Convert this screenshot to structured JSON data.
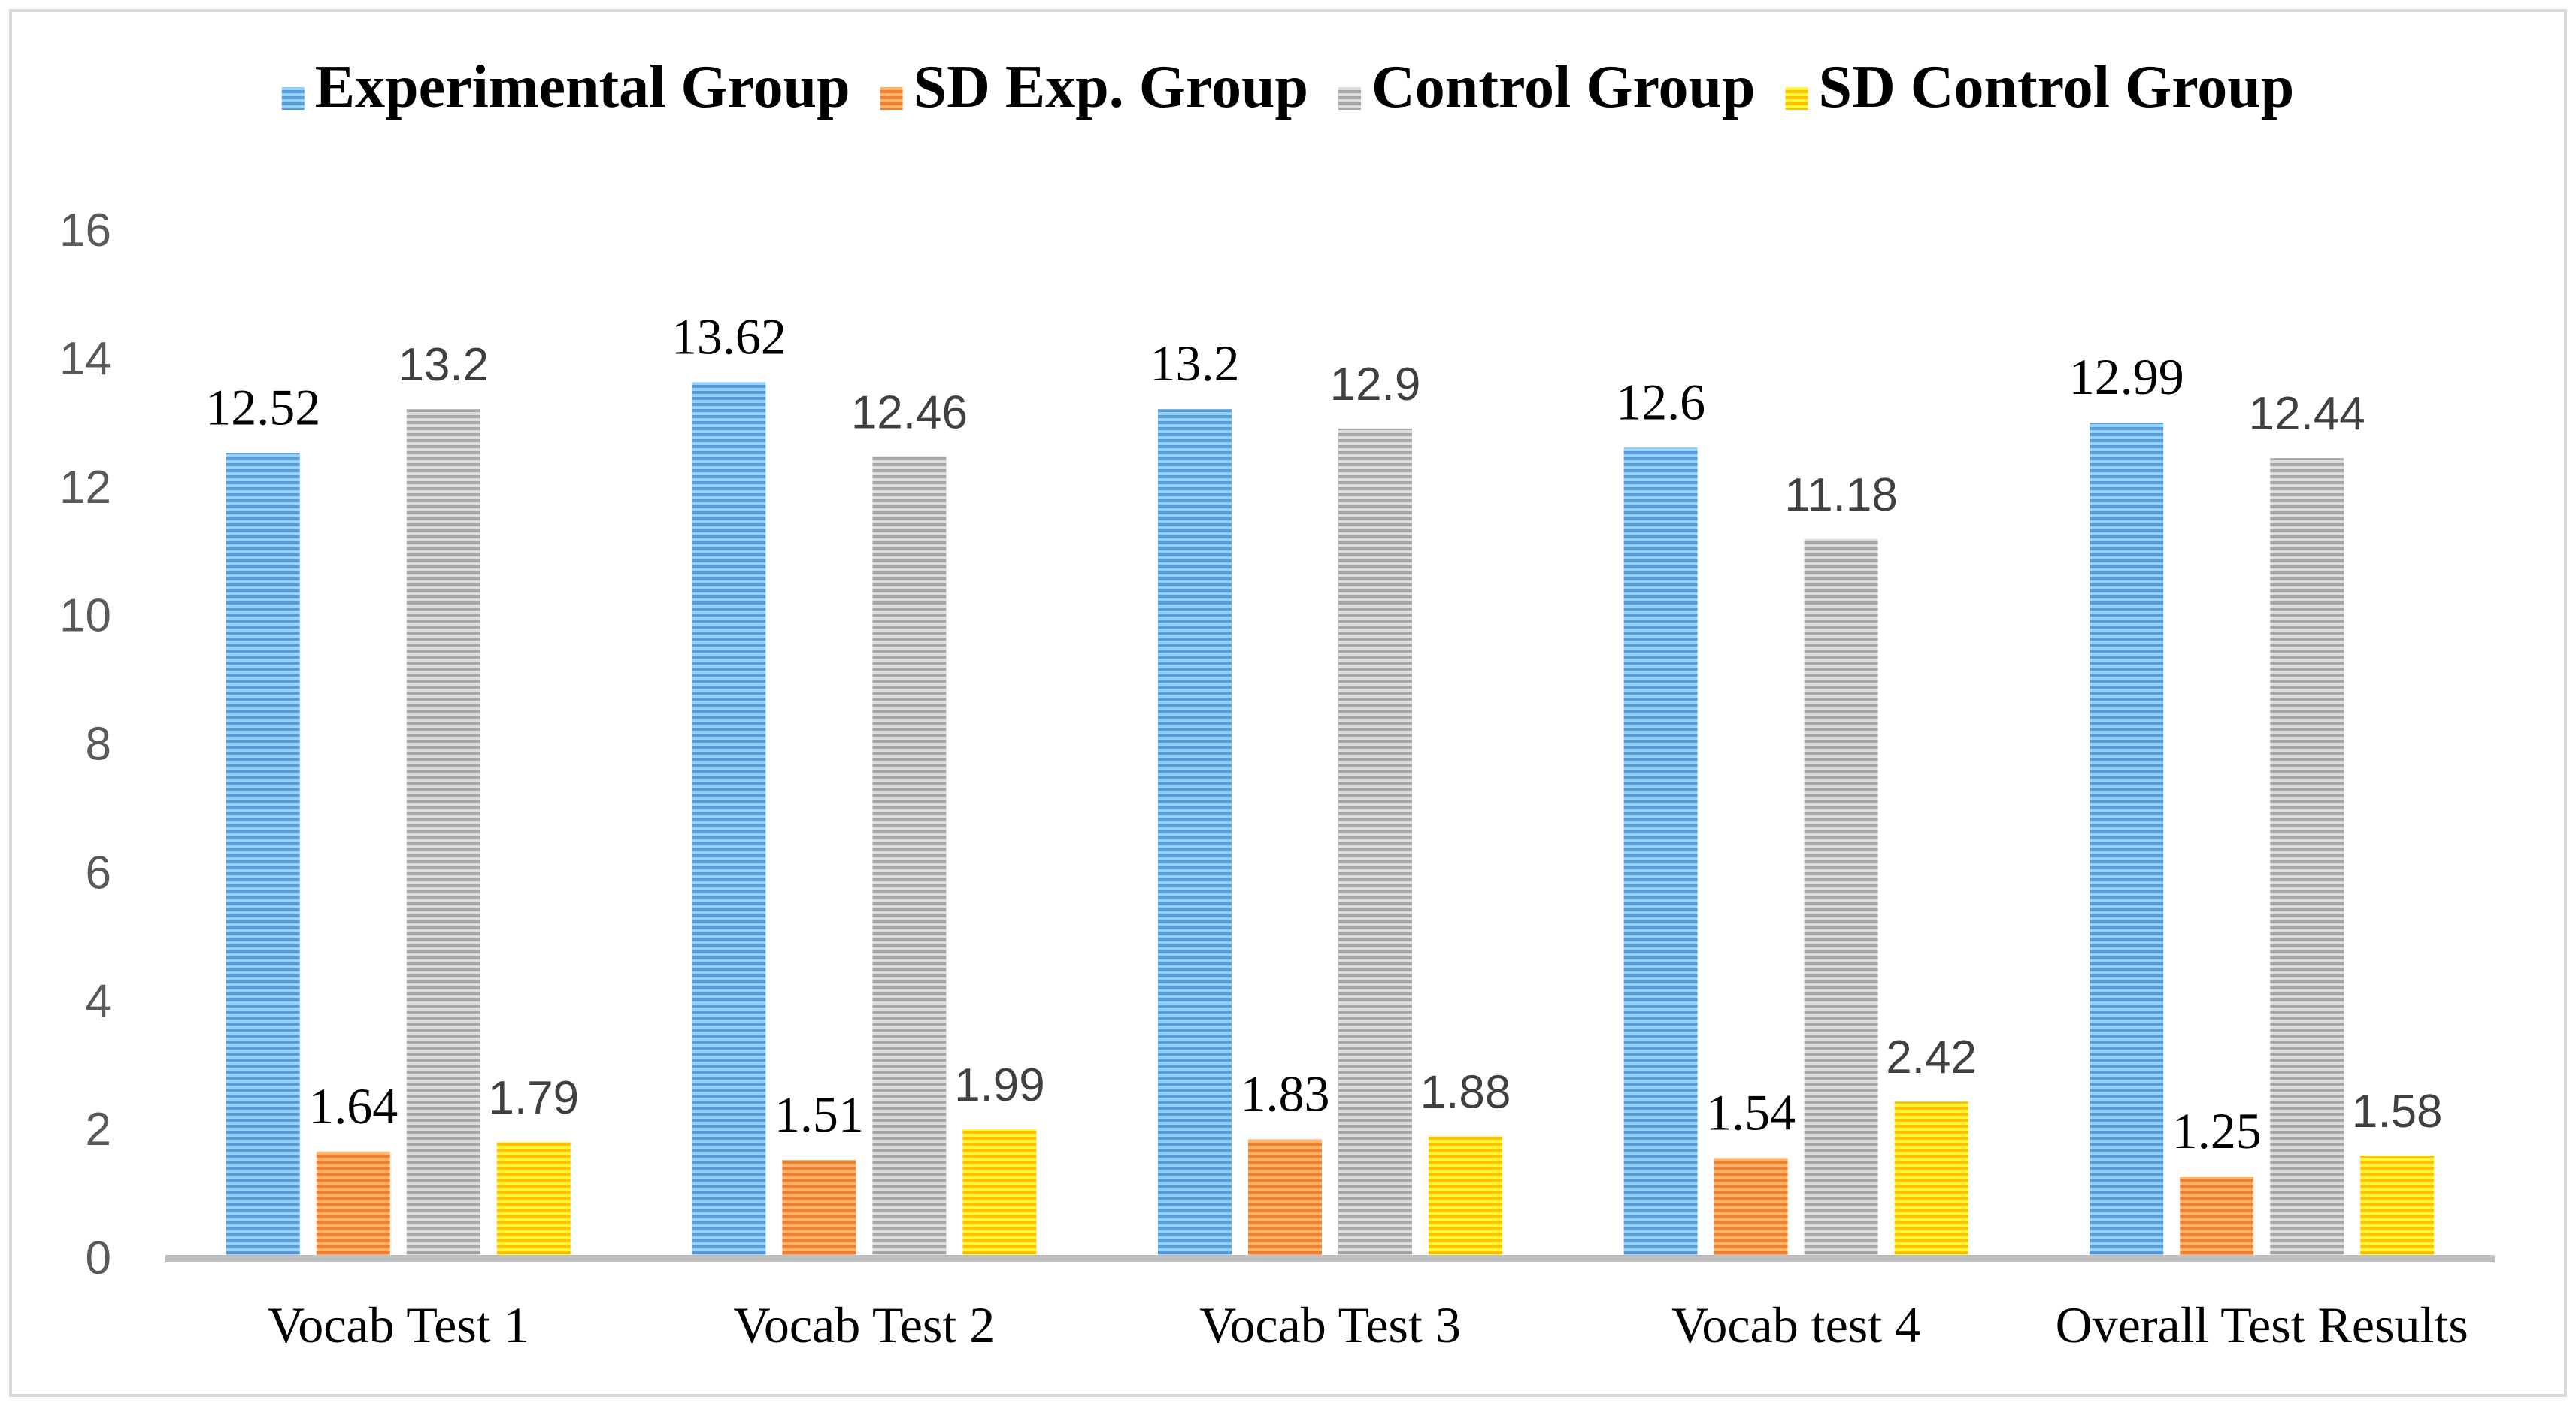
{
  "chart_data": {
    "type": "bar",
    "title": "",
    "xlabel": "",
    "ylabel": "",
    "ylim": [
      0,
      16
    ],
    "yticks": [
      0,
      2,
      4,
      6,
      8,
      10,
      12,
      14,
      16
    ],
    "grid": false,
    "legend_position": "top",
    "categories": [
      "Vocab Test 1",
      "Vocab Test 2",
      "Vocab Test 3",
      "Vocab test 4",
      "Overall Test Results"
    ],
    "series": [
      {
        "name": "Experimental Group",
        "color": "#5B9BD5",
        "values": [
          12.52,
          13.62,
          13.2,
          12.6,
          12.99
        ],
        "labels": [
          "12.52",
          "13.62",
          "13.2",
          "12.6",
          "12.99"
        ],
        "label_font": "serif"
      },
      {
        "name": "SD Exp. Group",
        "color": "#ED7D31",
        "values": [
          1.64,
          1.51,
          1.83,
          1.54,
          1.25
        ],
        "labels": [
          "1.64",
          "1.51",
          "1.83",
          "1.54",
          "1.25"
        ],
        "label_font": "serif"
      },
      {
        "name": "Control Group",
        "color": "#A5A5A5",
        "values": [
          13.2,
          12.46,
          12.9,
          11.18,
          12.44
        ],
        "labels": [
          "13.2",
          "12.46",
          "12.9",
          "11.18",
          "12.44"
        ],
        "label_font": "sans"
      },
      {
        "name": "SD Control Group",
        "color": "#FFC000",
        "values": [
          1.79,
          1.99,
          1.88,
          2.42,
          1.58
        ],
        "labels": [
          "1.79",
          "1.99",
          "1.88",
          "2.42",
          "1.58"
        ],
        "label_font": "sans"
      }
    ]
  }
}
